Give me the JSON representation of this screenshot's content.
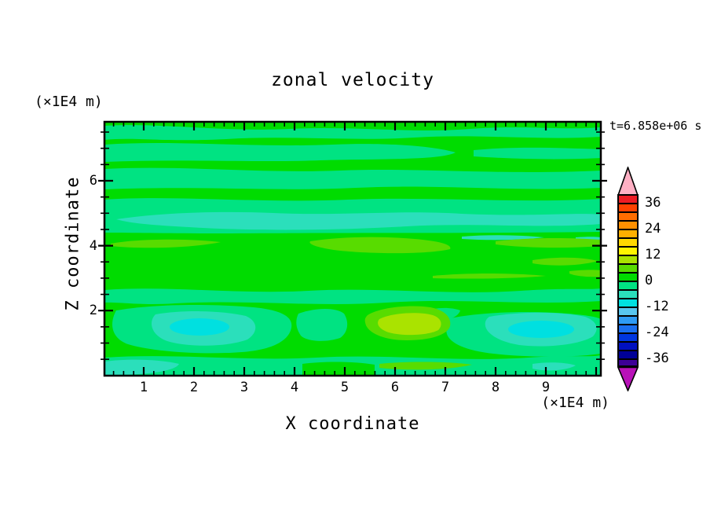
{
  "title": "zonal velocity",
  "time_label": "t=6.858e+06 s",
  "x_axis": {
    "label": "X coordinate",
    "unit_label": "(×1E4 m)",
    "tick_labels": [
      "1",
      "2",
      "3",
      "4",
      "5",
      "6",
      "7",
      "8",
      "9"
    ]
  },
  "y_axis": {
    "label": "Z coordinate",
    "unit_label": "(×1E4 m)",
    "tick_labels_top_to_bottom": [
      "6",
      "4",
      "2"
    ]
  },
  "colorbar": {
    "tick_labels_top_to_bottom": [
      "36",
      "24",
      "12",
      "0",
      "-12",
      "-24",
      "-36"
    ],
    "segment_colors_top_to_bottom": [
      "#ED1C24",
      "#FF4200",
      "#FF6D00",
      "#FF9000",
      "#FFB000",
      "#FFD800",
      "#FFF400",
      "#AAE300",
      "#58DC00",
      "#00DC00",
      "#00E382",
      "#2BDFBB",
      "#00E0E0",
      "#58C6F0",
      "#2E9BF5",
      "#1A6FF0",
      "#0036E0",
      "#0010C0",
      "#000096",
      "#3D0096"
    ],
    "segment_values_top_to_bottom": [
      "36 to 40",
      "32 to 36",
      "28 to 32",
      "24 to 28",
      "20 to 24",
      "16 to 20",
      "12 to 16",
      "8 to 12",
      "4 to 8",
      "0 to 4",
      "-4 to 0",
      "-8 to -4",
      "-12 to -8",
      "-16 to -12",
      "-20 to -16",
      "-24 to -20",
      "-28 to -24",
      "-32 to -28",
      "-36 to -32",
      "-40 to -36"
    ],
    "over_arrow_color": "#FFB0C4",
    "under_arrow_color": "#B812B8"
  },
  "palette": {
    "green": "#00DC00",
    "spring": "#00E382",
    "turquoise": "#2BDFBB",
    "cyan": "#00E0E0",
    "chartreuse": "#58DC00",
    "yellow_green": "#AAE300"
  },
  "chart_data": {
    "type": "filled_contour",
    "title": "zonal velocity",
    "time_annotation": "t=6.858e+06 s",
    "xlabel": "X coordinate",
    "ylabel": "Z coordinate",
    "x_unit": "(×1E4 m)",
    "y_unit": "(×1E4 m)",
    "x_ticks": [
      1,
      2,
      3,
      4,
      5,
      6,
      7,
      8,
      9
    ],
    "y_ticks": [
      2,
      4,
      6
    ],
    "x_range_approx": [
      0.2,
      10.1
    ],
    "y_range_approx": [
      0,
      7.8
    ],
    "contour_interval": 4,
    "levels": [
      -40,
      -36,
      -32,
      -28,
      -24,
      -20,
      -16,
      -12,
      -8,
      -4,
      0,
      4,
      8,
      12,
      16,
      20,
      24,
      28,
      32,
      36,
      40
    ],
    "colorbar_tick_labels": [
      36,
      24,
      12,
      0,
      -12,
      -24,
      -36
    ],
    "colorbar_has_over_under_arrows": true,
    "field_features": [
      {
        "value_range": "0 to 4",
        "color": "green",
        "where": "dominant background over whole domain"
      },
      {
        "value_range": "-4 to 0",
        "color": "spring green",
        "where": "horizontal wavy bands near z=5.3-7.6, thick band z=4.2-5.1, wavy bands z=1.0-2.6 and along bottom edge z=0-0.6"
      },
      {
        "value_range": "-8 to -4",
        "color": "turquoise",
        "where": "full-width band near z=4.4-4.9; blobs near (x=1.3-2.5, z=1.1-2.0), (x=7.7-10, z=0.9-1.9), bottom-left corner, small patch near (x=6.5-7.3, z=0.2)"
      },
      {
        "value_range": "-12 to -8",
        "color": "cyan",
        "where": "cores of the turquoise blobs at (x=1.6, z=1.5) and (x=8.7, z=1.4)"
      },
      {
        "value_range": "4 to 8",
        "color": "chartreuse",
        "where": "thin streaks near z=3.7-3.9 (x=0.3-2.5, x=4.2-7, x=8-10), z=3.3 (x=8.7-10), z=2.9 (x=6.7-9); blob near (x=5.4-7.1, z=1.1-2.1); streak near bottom (x=5.7-7.4, z=0.2)"
      },
      {
        "value_range": "8 to 12",
        "color": "yellow-green",
        "where": "core of the blob near (x=5.7-6.9, z=1.2-1.9)"
      }
    ]
  }
}
